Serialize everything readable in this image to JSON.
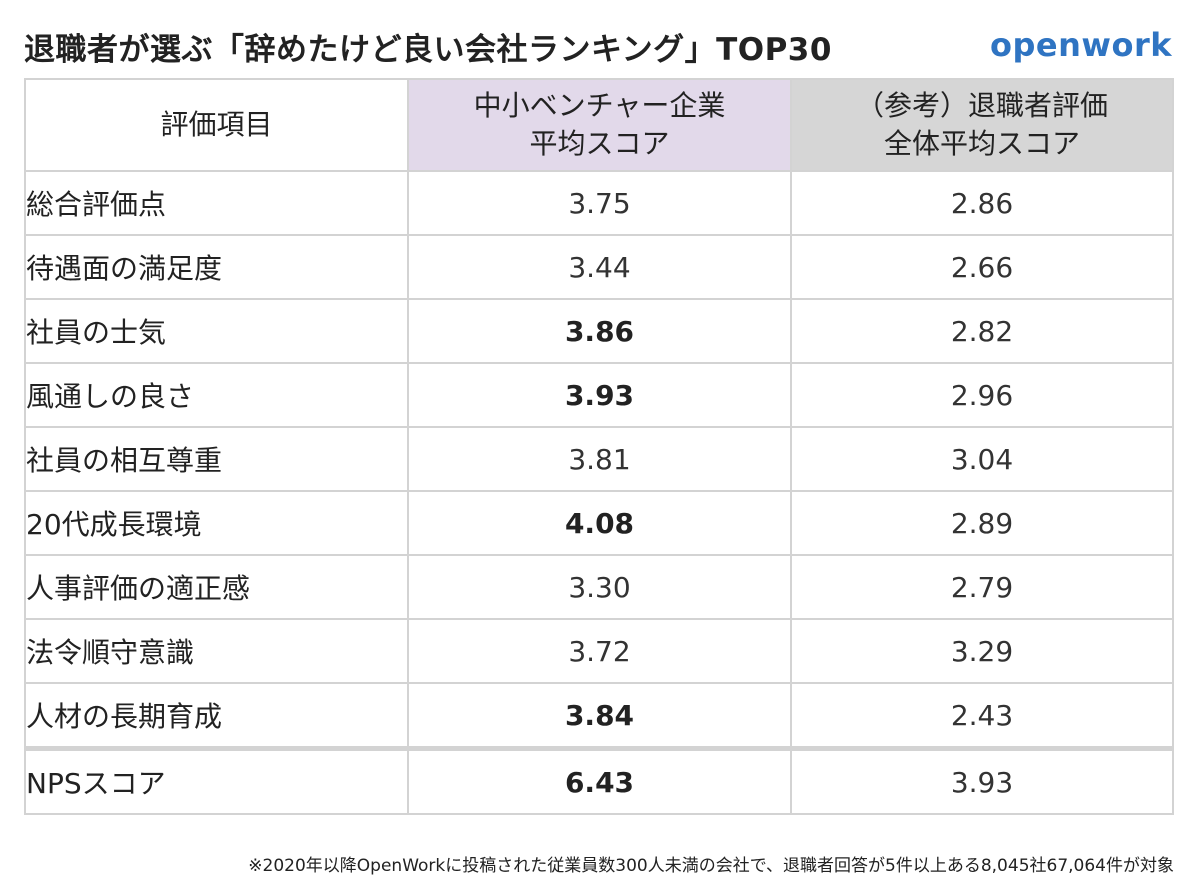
{
  "title": "退職者が選ぶ「辞めたけど良い会社ランキング」TOP30",
  "logo": "openwork",
  "headers": {
    "item": "評価項目",
    "venture_line1": "中小ベンチャー企業",
    "venture_line2": "平均スコア",
    "overall_line1": "（参考）退職者評価",
    "overall_line2": "全体平均スコア"
  },
  "rows": [
    {
      "label": "総合評価点",
      "venture": "3.75",
      "overall": "2.86"
    },
    {
      "label": "待遇面の満足度",
      "venture": "3.44",
      "overall": "2.66"
    },
    {
      "label": "社員の士気",
      "venture": "3.86",
      "overall": "2.82"
    },
    {
      "label": "風通しの良さ",
      "venture": "3.93",
      "overall": "2.96"
    },
    {
      "label": "社員の相互尊重",
      "venture": "3.81",
      "overall": "3.04"
    },
    {
      "label": "20代成長環境",
      "venture": "4.08",
      "overall": "2.89"
    },
    {
      "label": "人事評価の適正感",
      "venture": "3.30",
      "overall": "2.79"
    },
    {
      "label": "法令順守意識",
      "venture": "3.72",
      "overall": "3.29"
    },
    {
      "label": "人材の長期育成",
      "venture": "3.84",
      "overall": "2.43"
    },
    {
      "label": "NPSスコア",
      "venture": "6.43",
      "overall": "3.93"
    }
  ],
  "footnote": "※2020年以降OpenWorkに投稿された従業員数300人未満の会社で、退職者回答が5件以上ある8,045社67,064件が対象",
  "colors": {
    "venture_header_bg": "#e2d9ea",
    "overall_header_bg": "#d6d6d6",
    "logo": "#2f74c2",
    "grid": "#d3d3d3"
  }
}
